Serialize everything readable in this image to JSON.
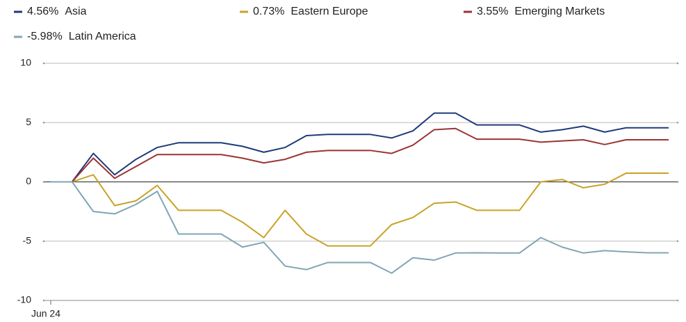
{
  "chart_data": {
    "type": "line",
    "categories": [
      "Jun 24",
      null,
      null,
      null,
      null,
      null,
      null,
      null,
      null,
      null,
      null,
      null,
      null,
      null,
      null,
      null,
      null,
      null,
      null,
      null,
      null,
      null,
      null,
      null,
      null,
      null,
      null,
      null,
      null,
      null
    ],
    "series": [
      {
        "name": "Asia",
        "legend_value": "4.56%",
        "color": "#1f3a7a",
        "values": [
          0,
          0,
          2.4,
          0.6,
          1.9,
          2.9,
          3.3,
          3.3,
          3.3,
          3.0,
          2.5,
          2.9,
          3.9,
          4.0,
          4.0,
          4.0,
          3.7,
          4.3,
          5.8,
          5.8,
          4.8,
          4.8,
          4.8,
          4.2,
          4.4,
          4.7,
          4.2,
          4.56,
          4.56,
          4.56
        ]
      },
      {
        "name": "Eastern Europe",
        "legend_value": "0.73%",
        "color": "#c9a227",
        "values": [
          0,
          0,
          0.6,
          -2.0,
          -1.6,
          -0.3,
          -2.4,
          -2.4,
          -2.4,
          -3.4,
          -4.7,
          -2.4,
          -4.4,
          -5.4,
          -5.4,
          -5.4,
          -3.6,
          -3.0,
          -1.8,
          -1.7,
          -2.4,
          -2.4,
          -2.4,
          0,
          0.2,
          -0.5,
          -0.2,
          0.73,
          0.73,
          0.73
        ]
      },
      {
        "name": "Emerging Markets",
        "legend_value": "3.55%",
        "color": "#9b3333",
        "values": [
          0,
          0,
          2.0,
          0.3,
          1.3,
          2.3,
          2.3,
          2.3,
          2.3,
          2.0,
          1.6,
          1.9,
          2.5,
          2.65,
          2.65,
          2.65,
          2.4,
          3.1,
          4.4,
          4.5,
          3.6,
          3.6,
          3.6,
          3.35,
          3.45,
          3.55,
          3.15,
          3.55,
          3.55,
          3.55
        ]
      },
      {
        "name": "Latin America",
        "legend_value": "-5.98%",
        "color": "#7fa6b4",
        "values": [
          0,
          0,
          -2.5,
          -2.7,
          -1.9,
          -0.8,
          -4.4,
          -4.4,
          -4.4,
          -5.5,
          -5.1,
          -7.1,
          -7.4,
          -6.8,
          -6.8,
          -6.8,
          -7.7,
          -6.4,
          -6.6,
          -6.0,
          -5.98,
          -6.0,
          -6.0,
          -4.7,
          -5.5,
          -6.0,
          -5.8,
          -5.9,
          -5.98,
          -5.98
        ]
      }
    ],
    "ylim": [
      -10,
      10
    ],
    "yticks": [
      -10,
      -5,
      0,
      5,
      10
    ],
    "grid": true
  }
}
